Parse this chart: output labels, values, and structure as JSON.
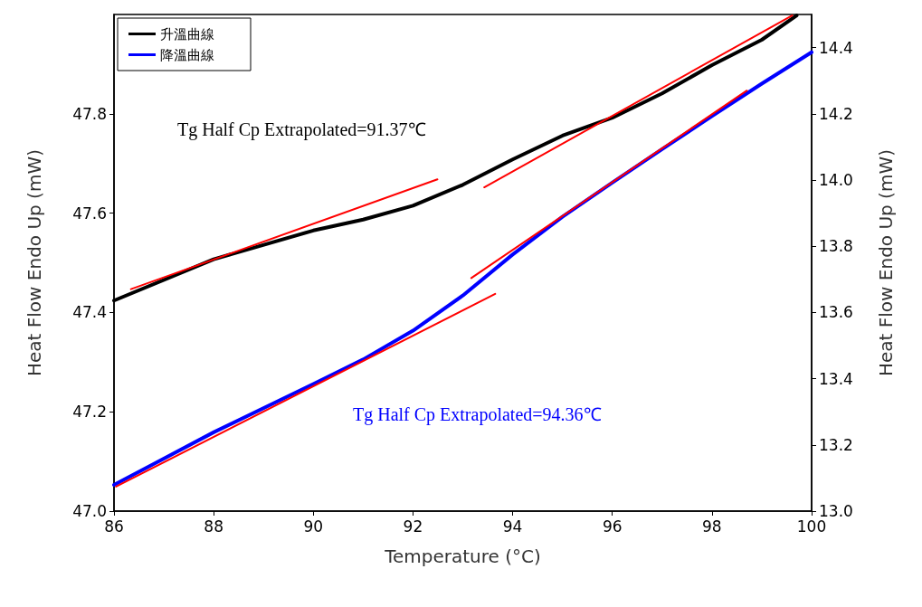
{
  "chart_data": {
    "type": "line",
    "xlabel": "Temperature (°C)",
    "ylabel": "Heat Flow Endo Up (mW)",
    "y2label": "Heat Flow Endo Up (mW)",
    "xlim": [
      86,
      100
    ],
    "xticks": [
      86,
      88,
      90,
      92,
      94,
      96,
      98,
      100
    ],
    "ylim": [
      47.0,
      48.0
    ],
    "yticks": [
      {
        "value": 47,
        "label": "47.0"
      },
      {
        "value": 47.2,
        "label": "47.2"
      },
      {
        "value": 47.4,
        "label": "47.4"
      },
      {
        "value": 47.6,
        "label": "47.6"
      },
      {
        "value": 47.8,
        "label": "47.8"
      }
    ],
    "y2lim": [
      13.0,
      14.5
    ],
    "y2ticks": [
      {
        "value": 13,
        "label": "13.0"
      },
      {
        "value": 13.2,
        "label": "13.2"
      },
      {
        "value": 13.4,
        "label": "13.4"
      },
      {
        "value": 13.6,
        "label": "13.6"
      },
      {
        "value": 13.8,
        "label": "13.8"
      },
      {
        "value": 14,
        "label": "14.0"
      },
      {
        "value": 14.2,
        "label": "14.2"
      },
      {
        "value": 14.4,
        "label": "14.4"
      }
    ],
    "grid": false,
    "legend": "top left",
    "marker": "none",
    "line_style": "solid",
    "annotations": [
      "Tg Half Cp Extrapolated=91.37℃",
      "Tg Half Cp Extrapolated=94.36℃"
    ],
    "series": [
      {
        "name": "升溫曲線",
        "color": "#000000",
        "x": [
          86,
          88,
          90,
          91,
          92,
          93,
          94,
          95,
          96,
          97,
          98,
          99,
          99.7
        ],
        "values": [
          47.424,
          47.507,
          47.565,
          47.587,
          47.615,
          47.657,
          47.708,
          47.756,
          47.792,
          47.841,
          47.898,
          47.949,
          47.998
        ]
      },
      {
        "name": "降溫曲線",
        "color": "#0000ff",
        "axis": "y2",
        "x": [
          86,
          88,
          90,
          91,
          92,
          93,
          94,
          95,
          96,
          97,
          98,
          99,
          100
        ],
        "values": [
          13.079,
          13.238,
          13.384,
          13.458,
          13.545,
          13.651,
          13.775,
          13.889,
          13.992,
          14.093,
          14.193,
          14.291,
          14.386
        ]
      },
      {
        "color": "#ff0000",
        "x": [
          86.34,
          92.49
        ],
        "values": [
          47.447,
          47.668
        ]
      },
      {
        "color": "#ff0000",
        "x": [
          93.43,
          99.61
        ],
        "values": [
          47.652,
          47.998
        ]
      },
      {
        "color": "#ff0000",
        "axis": "y2",
        "x": [
          86.04,
          93.65
        ],
        "values": [
          13.074,
          13.656
        ]
      },
      {
        "color": "#ff0000",
        "axis": "y2",
        "x": [
          93.17,
          98.7
        ],
        "values": [
          13.704,
          14.27
        ]
      }
    ]
  }
}
